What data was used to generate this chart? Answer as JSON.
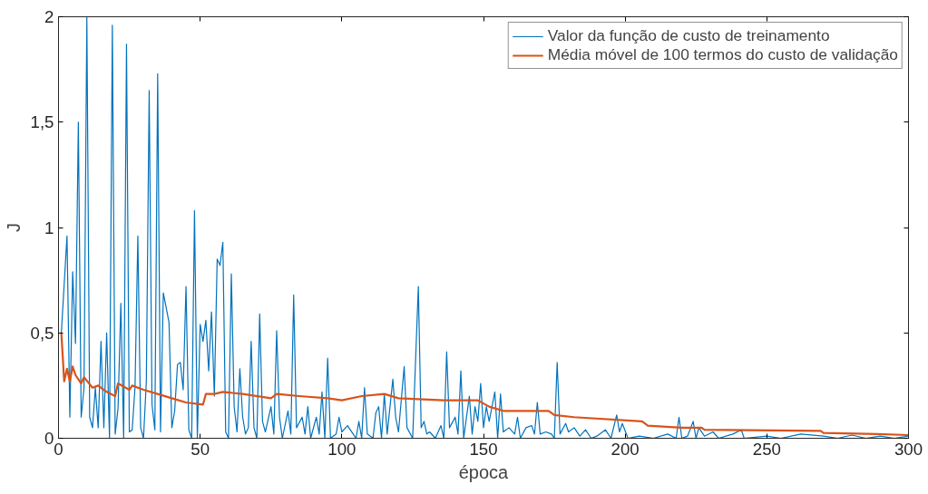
{
  "chart_data": {
    "type": "line",
    "xlabel": "época",
    "ylabel": "J",
    "xlim": [
      0,
      300
    ],
    "ylim": [
      0,
      2
    ],
    "xticks": [
      0,
      50,
      100,
      150,
      200,
      250,
      300
    ],
    "yticks": [
      0,
      {
        "value": 0.5,
        "label": "0,5"
      },
      1,
      {
        "value": 1.5,
        "label": "1,5"
      },
      2
    ],
    "grid": false,
    "legend": "top right",
    "line_style": "solid",
    "series": [
      {
        "name": "Valor da função de custo de treinamento",
        "color": "#0072bd",
        "x": [
          1,
          3,
          4,
          5,
          6,
          7,
          8,
          9,
          10,
          11,
          12,
          13,
          14,
          15,
          16,
          17,
          18,
          19,
          20,
          21,
          22,
          23,
          24,
          25,
          26,
          27,
          28,
          29,
          30,
          31,
          32,
          33,
          34,
          35,
          36,
          37,
          38,
          39,
          40,
          41,
          42,
          43,
          44,
          45,
          46,
          47,
          48,
          49,
          50,
          51,
          52,
          53,
          54,
          55,
          56,
          57,
          58,
          59,
          60,
          61,
          62,
          63,
          64,
          65,
          66,
          67,
          68,
          69,
          70,
          71,
          72,
          73,
          75,
          76,
          77,
          78,
          79,
          81,
          82,
          83,
          84,
          86,
          87,
          88,
          89,
          91,
          92,
          93,
          94,
          95,
          96,
          98,
          99,
          100,
          102,
          104,
          105,
          106,
          107,
          108,
          109,
          111,
          112,
          113,
          114,
          115,
          116,
          118,
          119,
          120,
          122,
          123,
          125,
          127,
          128,
          129,
          130,
          131,
          133,
          135,
          136,
          137,
          138,
          140,
          141,
          142,
          143,
          145,
          146,
          147,
          148,
          149,
          150,
          151,
          152,
          154,
          155,
          156,
          157,
          159,
          161,
          162,
          163,
          165,
          167,
          168,
          169,
          170,
          172,
          174,
          175,
          176,
          177,
          179,
          180,
          182,
          184,
          186,
          188,
          190,
          193,
          195,
          197,
          198,
          199,
          201,
          205,
          210,
          215,
          218,
          219,
          220,
          222,
          224,
          225,
          226,
          228,
          231,
          233,
          238,
          241,
          242,
          250,
          255,
          262,
          270,
          275,
          280,
          285,
          290,
          295,
          300
        ],
        "values": [
          0.5,
          0.96,
          0.1,
          0.79,
          0.45,
          1.5,
          0.1,
          0.24,
          2.0,
          0.1,
          0.05,
          0.24,
          0.05,
          0.46,
          0.05,
          0.5,
          0.0,
          1.96,
          0.02,
          0.14,
          0.64,
          0.0,
          1.87,
          0.03,
          0.04,
          0.24,
          0.96,
          0.05,
          0.0,
          0.27,
          1.65,
          0.16,
          0.04,
          1.73,
          0.03,
          0.69,
          0.62,
          0.55,
          0.05,
          0.13,
          0.35,
          0.36,
          0.23,
          0.72,
          0.04,
          0.0,
          1.08,
          0.0,
          0.54,
          0.46,
          0.56,
          0.32,
          0.6,
          0.2,
          0.85,
          0.82,
          0.93,
          0.03,
          0.0,
          0.78,
          0.15,
          0.03,
          0.33,
          0.1,
          0.02,
          0.05,
          0.46,
          0.05,
          0.0,
          0.59,
          0.08,
          0.03,
          0.15,
          0.02,
          0.51,
          0.1,
          0.0,
          0.13,
          0.02,
          0.68,
          0.05,
          0.1,
          0.02,
          0.15,
          0.0,
          0.1,
          0.02,
          0.22,
          0.0,
          0.38,
          0.0,
          0.02,
          0.1,
          0.03,
          0.06,
          0.02,
          0.0,
          0.08,
          0.0,
          0.24,
          0.02,
          0.0,
          0.12,
          0.15,
          0.0,
          0.21,
          0.02,
          0.28,
          0.1,
          0.03,
          0.34,
          0.05,
          0.0,
          0.72,
          0.05,
          0.08,
          0.02,
          0.03,
          0.0,
          0.06,
          0.0,
          0.41,
          0.05,
          0.1,
          0.02,
          0.32,
          0.0,
          0.2,
          0.02,
          0.15,
          0.08,
          0.26,
          0.05,
          0.15,
          0.08,
          0.22,
          0.0,
          0.21,
          0.03,
          0.05,
          0.02,
          0.1,
          0.0,
          0.05,
          0.06,
          0.02,
          0.17,
          0.02,
          0.03,
          0.02,
          0.0,
          0.36,
          0.02,
          0.07,
          0.03,
          0.05,
          0.01,
          0.04,
          0.0,
          0.01,
          0.04,
          0.0,
          0.11,
          0.03,
          0.07,
          0.0,
          0.01,
          0.0,
          0.02,
          0.0,
          0.1,
          0.0,
          0.01,
          0.08,
          0.0,
          0.05,
          0.01,
          0.03,
          0.0,
          0.02,
          0.04,
          0.0,
          0.01,
          0.0,
          0.02,
          0.01,
          0.0,
          0.015,
          0.0,
          0.01,
          0.0,
          0.01
        ]
      },
      {
        "name": "Média móvel de 100 termos do custo de validação",
        "color": "#d95319",
        "x": [
          1,
          2,
          3,
          4,
          5,
          6,
          8,
          9,
          12,
          14,
          17,
          20,
          21,
          25,
          26,
          30,
          35,
          40,
          45,
          51,
          52,
          55,
          58,
          65,
          75,
          77,
          85,
          95,
          100,
          107,
          115,
          120,
          136,
          148,
          152,
          157,
          173,
          175,
          182,
          206,
          208,
          220,
          227,
          228,
          269,
          270,
          289,
          300
        ],
        "values": [
          0.5,
          0.27,
          0.33,
          0.27,
          0.34,
          0.3,
          0.26,
          0.29,
          0.24,
          0.25,
          0.22,
          0.2,
          0.26,
          0.23,
          0.25,
          0.23,
          0.21,
          0.19,
          0.17,
          0.16,
          0.21,
          0.21,
          0.22,
          0.21,
          0.19,
          0.21,
          0.2,
          0.19,
          0.18,
          0.2,
          0.21,
          0.19,
          0.18,
          0.18,
          0.15,
          0.13,
          0.13,
          0.11,
          0.1,
          0.08,
          0.06,
          0.05,
          0.05,
          0.04,
          0.035,
          0.025,
          0.02,
          0.015
        ]
      }
    ]
  }
}
